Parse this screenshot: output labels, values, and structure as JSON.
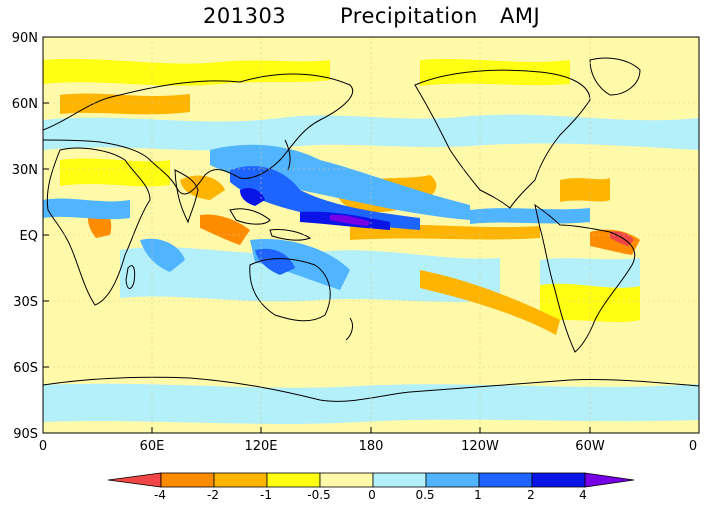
{
  "title": {
    "date": "201303",
    "variable": "Precipitation",
    "season": "AMJ"
  },
  "map": {
    "lat_labels": [
      "90N",
      "60N",
      "30N",
      "EQ",
      "30S",
      "60S",
      "90S"
    ],
    "lon_labels": [
      "0",
      "60E",
      "120E",
      "180",
      "120W",
      "60W",
      "0"
    ]
  },
  "colorbar": {
    "labels": [
      "-4",
      "-2",
      "-1",
      "-0.5",
      "0",
      "0.5",
      "1",
      "2",
      "4"
    ],
    "colors": [
      "#f04646",
      "#ff8c00",
      "#ffb400",
      "#ffff14",
      "#fffaaa",
      "#b4f0fa",
      "#50b4ff",
      "#1e64ff",
      "#0a14e6",
      "#7800e6"
    ]
  },
  "palette": {
    "neutral": "#fffaaa",
    "dry_light": "#ffff14",
    "dry_mid": "#ffb400",
    "dry_strong": "#ff8c00",
    "dry_extreme": "#f04646",
    "wet_light": "#b4f0fa",
    "wet_mid": "#50b4ff",
    "wet_strong": "#1e64ff",
    "wet_extreme": "#0a14e6",
    "wet_max": "#7800e6"
  }
}
